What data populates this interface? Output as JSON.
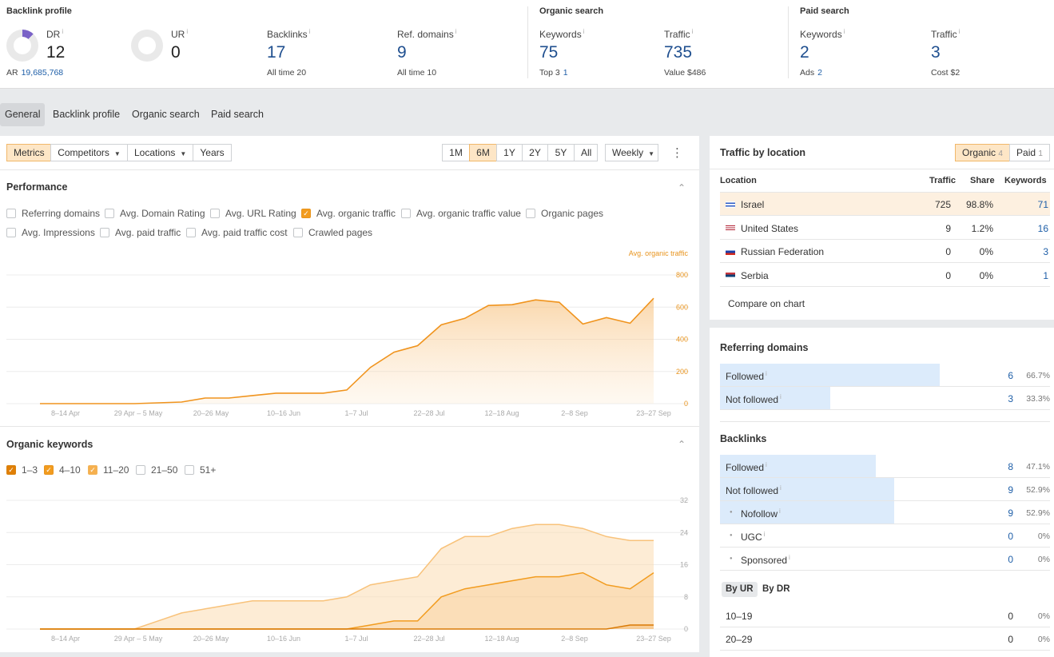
{
  "backlink_profile": {
    "title": "Backlink profile",
    "dr": {
      "label": "DR",
      "info": "i",
      "value": "12",
      "sub_label": "AR",
      "sub_value": "19,685,768",
      "fraction": 0.12
    },
    "ur": {
      "label": "UR",
      "info": "i",
      "value": "0",
      "fraction": 0
    },
    "backlinks": {
      "label": "Backlinks",
      "info": "i",
      "value": "17",
      "sub_label": "All time",
      "sub_value": "20"
    },
    "ref_domains": {
      "label": "Ref. domains",
      "info": "i",
      "value": "9",
      "sub_label": "All time",
      "sub_value": "10"
    }
  },
  "organic_search": {
    "title": "Organic search",
    "keywords": {
      "label": "Keywords",
      "info": "i",
      "value": "75",
      "sub_label": "Top 3",
      "sub_value": "1"
    },
    "traffic": {
      "label": "Traffic",
      "info": "i",
      "value": "735",
      "sub_label": "Value",
      "sub_value": "$486"
    }
  },
  "paid_search": {
    "title": "Paid search",
    "keywords": {
      "label": "Keywords",
      "info": "i",
      "value": "2",
      "sub_label": "Ads",
      "sub_value": "2"
    },
    "traffic": {
      "label": "Traffic",
      "info": "i",
      "value": "3",
      "sub_label": "Cost",
      "sub_value": "$2"
    }
  },
  "tabs": [
    "General",
    "Backlink profile",
    "Organic search",
    "Paid search"
  ],
  "toolbar": {
    "metrics": "Metrics",
    "competitors": "Competitors",
    "locations": "Locations",
    "years": "Years",
    "ranges": [
      "1M",
      "6M",
      "1Y",
      "2Y",
      "5Y",
      "All"
    ],
    "active_range": "6M",
    "interval": "Weekly",
    "more": "⋮"
  },
  "performance": {
    "title": "Performance",
    "chevron": "⌃",
    "checkboxes_row1": [
      {
        "label": "Referring domains",
        "checked": false
      },
      {
        "label": "Avg. Domain Rating",
        "checked": false
      },
      {
        "label": "Avg. URL Rating",
        "checked": false
      },
      {
        "label": "Avg. organic traffic",
        "checked": true
      },
      {
        "label": "Avg. organic traffic value",
        "checked": false
      },
      {
        "label": "Organic pages",
        "checked": false
      }
    ],
    "checkboxes_row2": [
      {
        "label": "Avg. Impressions",
        "checked": false
      },
      {
        "label": "Avg. paid traffic",
        "checked": false
      },
      {
        "label": "Avg. paid traffic cost",
        "checked": false
      },
      {
        "label": "Crawled pages",
        "checked": false
      }
    ]
  },
  "organic_keywords": {
    "title": "Organic keywords",
    "chevron": "⌃",
    "checkboxes": [
      {
        "label": "1–3",
        "checked": true,
        "style": "chk2"
      },
      {
        "label": "4–10",
        "checked": true,
        "style": "chk"
      },
      {
        "label": "11–20",
        "checked": true,
        "style": "chk3"
      },
      {
        "label": "21–50",
        "checked": false,
        "style": ""
      },
      {
        "label": "51+",
        "checked": false,
        "style": ""
      }
    ]
  },
  "chart_data": [
    {
      "type": "area",
      "title": "",
      "series_label": "Avg. organic traffic",
      "x_ticks": [
        "8–14 Apr",
        "29 Apr – 5 May",
        "20–26 May",
        "10–16 Jun",
        "1–7 Jul",
        "22–28 Jul",
        "12–18 Aug",
        "2–8 Sep",
        "23–27 Sep"
      ],
      "y_ticks": [
        0,
        200,
        400,
        600,
        800
      ],
      "ylim": [
        0,
        800
      ],
      "color": "#f0941e",
      "series": [
        {
          "name": "Avg. organic traffic",
          "values": [
            0,
            0,
            0,
            0,
            0,
            5,
            10,
            35,
            35,
            50,
            65,
            65,
            65,
            85,
            225,
            320,
            360,
            490,
            530,
            610,
            615,
            645,
            630,
            495,
            535,
            500,
            655
          ]
        }
      ]
    },
    {
      "type": "area",
      "title": "",
      "x_ticks": [
        "8–14 Apr",
        "29 Apr – 5 May",
        "20–26 May",
        "10–16 Jun",
        "1–7 Jul",
        "22–28 Jul",
        "12–18 Aug",
        "2–8 Sep",
        "23–27 Sep"
      ],
      "y_ticks": [
        0,
        8,
        16,
        24,
        32
      ],
      "ylim": [
        0,
        32
      ],
      "stacked": true,
      "series": [
        {
          "name": "1–3",
          "color": "#d97a06",
          "values": [
            0,
            0,
            0,
            0,
            0,
            0,
            0,
            0,
            0,
            0,
            0,
            0,
            0,
            0,
            0,
            0,
            0,
            0,
            0,
            0,
            0,
            0,
            0,
            0,
            0,
            1,
            1
          ]
        },
        {
          "name": "4–10",
          "color": "#f29c1f",
          "values": [
            0,
            0,
            0,
            0,
            0,
            0,
            0,
            0,
            0,
            0,
            0,
            0,
            0,
            0,
            1,
            2,
            2,
            8,
            10,
            11,
            12,
            13,
            13,
            14,
            11,
            9,
            13
          ]
        },
        {
          "name": "11–20",
          "color": "#f8c27a",
          "values": [
            0,
            0,
            0,
            0,
            0,
            2,
            4,
            5,
            6,
            7,
            7,
            7,
            7,
            8,
            10,
            10,
            11,
            12,
            13,
            12,
            13,
            13,
            13,
            11,
            12,
            12,
            8
          ]
        }
      ]
    }
  ],
  "traffic_by_location": {
    "title": "Traffic by location",
    "toggle": [
      {
        "label": "Organic",
        "count": "4",
        "active": true
      },
      {
        "label": "Paid",
        "count": "1",
        "active": false
      }
    ],
    "columns": [
      "Location",
      "Traffic",
      "Share",
      "Keywords"
    ],
    "rows": [
      {
        "location": "Israel",
        "traffic": "725",
        "share": "98.8%",
        "keywords": "71",
        "highlight": true,
        "flag": "il"
      },
      {
        "location": "United States",
        "traffic": "9",
        "share": "1.2%",
        "keywords": "16",
        "highlight": false,
        "flag": "us"
      },
      {
        "location": "Russian Federation",
        "traffic": "0",
        "share": "0%",
        "keywords": "3",
        "highlight": false,
        "flag": "ru"
      },
      {
        "location": "Serbia",
        "traffic": "0",
        "share": "0%",
        "keywords": "1",
        "highlight": false,
        "flag": "rs"
      }
    ],
    "compare": "Compare on chart"
  },
  "referring_domains": {
    "title": "Referring domains",
    "rows": [
      {
        "label": "Followed",
        "info": "i",
        "count": "6",
        "pct": "66.7%",
        "fraction": 0.667
      },
      {
        "label": "Not followed",
        "info": "i",
        "count": "3",
        "pct": "33.3%",
        "fraction": 0.333
      }
    ]
  },
  "backlinks": {
    "title": "Backlinks",
    "rows": [
      {
        "label": "Followed",
        "info": "i",
        "count": "8",
        "pct": "47.1%",
        "fraction": 0.471,
        "sub": false
      },
      {
        "label": "Not followed",
        "info": "i",
        "count": "9",
        "pct": "52.9%",
        "fraction": 0.529,
        "sub": false
      },
      {
        "label": "Nofollow",
        "info": "i",
        "count": "9",
        "pct": "52.9%",
        "fraction": 0.529,
        "sub": true
      },
      {
        "label": "UGC",
        "info": "i",
        "count": "0",
        "pct": "0%",
        "fraction": 0,
        "sub": true
      },
      {
        "label": "Sponsored",
        "info": "i",
        "count": "0",
        "pct": "0%",
        "fraction": 0,
        "sub": true
      }
    ],
    "by_tabs": [
      "By UR",
      "By DR"
    ],
    "ur_rows": [
      {
        "label": "10–19",
        "count": "0",
        "pct": "0%"
      },
      {
        "label": "20–29",
        "count": "0",
        "pct": "0%"
      }
    ]
  }
}
